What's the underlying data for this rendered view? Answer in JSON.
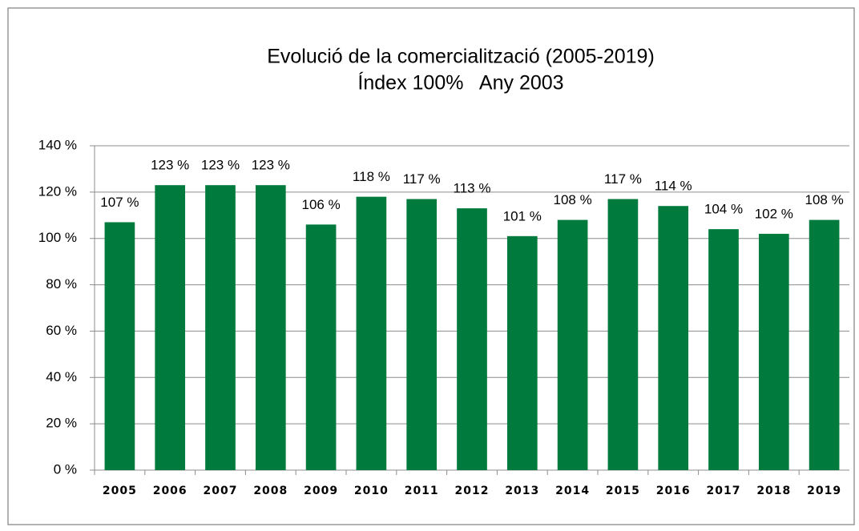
{
  "chart_data": {
    "type": "bar",
    "title": "Evolució de la comercialització (2005-2019)",
    "subtitle": "Índex 100%   Any 2003",
    "categories": [
      "2005",
      "2006",
      "2007",
      "2008",
      "2009",
      "2010",
      "2011",
      "2012",
      "2013",
      "2014",
      "2015",
      "2016",
      "2017",
      "2018",
      "2019"
    ],
    "values": [
      107,
      123,
      123,
      123,
      106,
      118,
      117,
      113,
      101,
      108,
      117,
      114,
      104,
      102,
      108
    ],
    "value_labels": [
      "107 %",
      "123 %",
      "123 %",
      "123 %",
      "106 %",
      "118 %",
      "117 %",
      "113 %",
      "101 %",
      "108 %",
      "117 %",
      "114 %",
      "104 %",
      "102 %",
      "108 %"
    ],
    "color": "#007a3d",
    "ylim": [
      0,
      140
    ],
    "yticks": [
      {
        "value": 0,
        "label": "0 %"
      },
      {
        "value": 20,
        "label": "20 %"
      },
      {
        "value": 40,
        "label": "40 %"
      },
      {
        "value": 60,
        "label": "60 %"
      },
      {
        "value": 80,
        "label": "80 %"
      },
      {
        "value": 100,
        "label": "100 %"
      },
      {
        "value": 120,
        "label": "120 %"
      },
      {
        "value": 140,
        "label": "140 %"
      }
    ],
    "grid": true
  }
}
